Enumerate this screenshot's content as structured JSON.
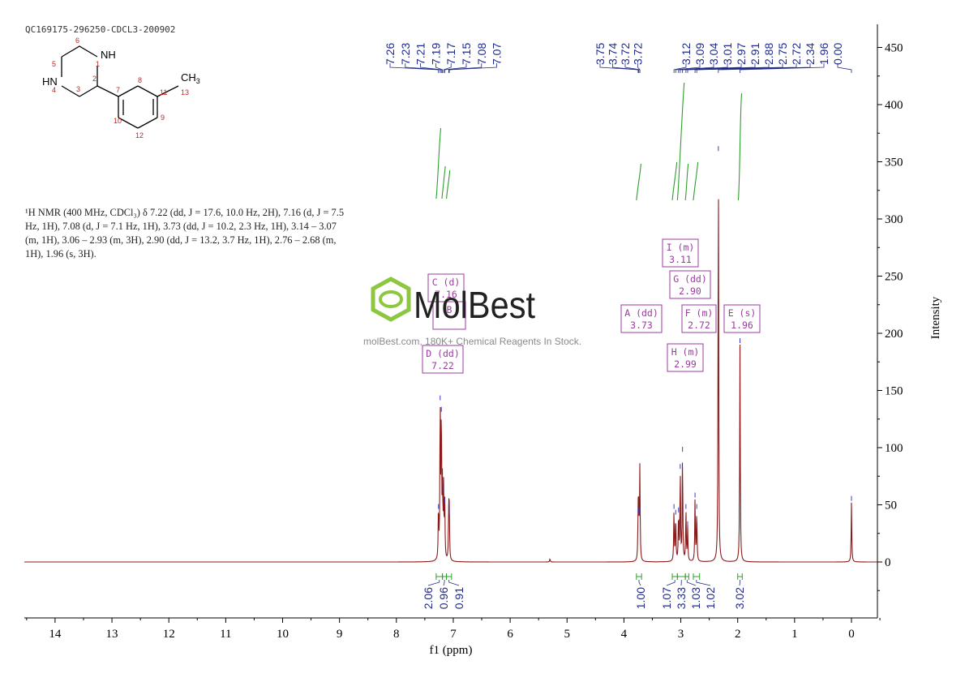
{
  "sample_id": "QC169175-296250-CDCL3-200902",
  "nmr_description": "¹H NMR (400 MHz, CDCl₃) δ 7.22 (dd, J = 17.6, 10.0 Hz, 2H), 7.16 (d, J = 7.5 Hz, 1H), 7.08 (d, J = 7.1 Hz, 1H), 3.73 (dd, J = 10.2, 2.3 Hz, 1H), 3.14 – 3.07 (m, 1H), 3.06 – 2.93 (m, 3H), 2.90 (dd, J = 13.2, 3.7 Hz, 1H), 2.76 – 2.68 (m, 1H), 1.96 (s, 3H).",
  "watermark": {
    "brand": "MolBest",
    "tagline": "molBest.com, 180K+ Chemical Reagents In Stock.",
    "color": "#8dc63f"
  },
  "structure": {
    "nh_top": "NH",
    "nh_left": "HN",
    "methyl": "CH",
    "methyl_sub": "3",
    "atom_numbers": [
      "1",
      "2",
      "3",
      "4",
      "5",
      "6",
      "7",
      "8",
      "9",
      "10",
      "11",
      "12",
      "13"
    ]
  },
  "colors": {
    "spectrum": "#8b1a1a",
    "peak_label": "#1f2a8c",
    "integral": "#2e9e2e",
    "multiplet": "#9b3aa0",
    "axis": "#000000"
  },
  "chart_data": {
    "type": "line",
    "xlabel": "f1 (ppm)",
    "ylabel": "Intensity",
    "xlim": [
      14.5,
      -0.5
    ],
    "ylim": [
      -50,
      470
    ],
    "x_ticks": [
      14,
      13,
      12,
      11,
      10,
      9,
      8,
      7,
      6,
      5,
      4,
      3,
      2,
      1,
      0
    ],
    "y_ticks": [
      0,
      50,
      100,
      150,
      200,
      250,
      300,
      350,
      400,
      450
    ],
    "peaks": [
      {
        "ppm": 7.26,
        "height": 45
      },
      {
        "ppm": 7.23,
        "height": 140
      },
      {
        "ppm": 7.21,
        "height": 130
      },
      {
        "ppm": 7.19,
        "height": 65
      },
      {
        "ppm": 7.17,
        "height": 60
      },
      {
        "ppm": 7.15,
        "height": 50
      },
      {
        "ppm": 7.08,
        "height": 45
      },
      {
        "ppm": 7.07,
        "height": 40
      },
      {
        "ppm": 5.3,
        "height": 3
      },
      {
        "ppm": 3.75,
        "height": 42
      },
      {
        "ppm": 3.74,
        "height": 40
      },
      {
        "ppm": 3.72,
        "height": 42
      },
      {
        "ppm": 3.72,
        "height": 40
      },
      {
        "ppm": 3.12,
        "height": 45
      },
      {
        "ppm": 3.09,
        "height": 40
      },
      {
        "ppm": 3.04,
        "height": 42
      },
      {
        "ppm": 3.01,
        "height": 80
      },
      {
        "ppm": 2.97,
        "height": 95
      },
      {
        "ppm": 2.91,
        "height": 45
      },
      {
        "ppm": 2.88,
        "height": 30
      },
      {
        "ppm": 2.75,
        "height": 55
      },
      {
        "ppm": 2.72,
        "height": 45
      },
      {
        "ppm": 2.34,
        "height": 358
      },
      {
        "ppm": 1.96,
        "height": 190
      },
      {
        "ppm": 0.0,
        "height": 52
      }
    ],
    "peak_labels": {
      "aromatic": [
        "7.26",
        "7.23",
        "7.21",
        "7.19",
        "7.17",
        "7.15",
        "7.08",
        "7.07"
      ],
      "aliphatic_a": [
        "3.75",
        "3.74",
        "3.72",
        "3.72"
      ],
      "aliphatic_b": [
        "3.12",
        "3.09",
        "3.04",
        "3.01",
        "2.97",
        "2.91",
        "2.88",
        "2.75",
        "2.72",
        "2.34",
        "1.96",
        "0.00"
      ]
    },
    "multiplets": [
      {
        "letter": "A",
        "type": "dd",
        "shift": "3.73"
      },
      {
        "letter": "B",
        "type": "",
        "shift": ""
      },
      {
        "letter": "C",
        "type": "d",
        "shift": "7.16"
      },
      {
        "letter": "D",
        "type": "dd",
        "shift": "7.22"
      },
      {
        "letter": "E",
        "type": "s",
        "shift": "1.96"
      },
      {
        "letter": "F",
        "type": "m",
        "shift": "2.72"
      },
      {
        "letter": "G",
        "type": "dd",
        "shift": "2.90"
      },
      {
        "letter": "H",
        "type": "m",
        "shift": "2.99"
      },
      {
        "letter": "I",
        "type": "m",
        "shift": "3.11"
      }
    ],
    "integrals": [
      {
        "from": 7.3,
        "to": 7.19,
        "value": "2.06"
      },
      {
        "from": 7.19,
        "to": 7.12,
        "value": "0.96"
      },
      {
        "from": 7.12,
        "to": 7.03,
        "value": "0.91"
      },
      {
        "from": 3.78,
        "to": 3.69,
        "value": "1.00"
      },
      {
        "from": 3.15,
        "to": 3.06,
        "value": "1.07"
      },
      {
        "from": 3.06,
        "to": 2.92,
        "value": "3.33"
      },
      {
        "from": 2.92,
        "to": 2.86,
        "value": "1.03"
      },
      {
        "from": 2.78,
        "to": 2.67,
        "value": "1.02"
      },
      {
        "from": 2.0,
        "to": 1.92,
        "value": "3.02"
      }
    ]
  }
}
